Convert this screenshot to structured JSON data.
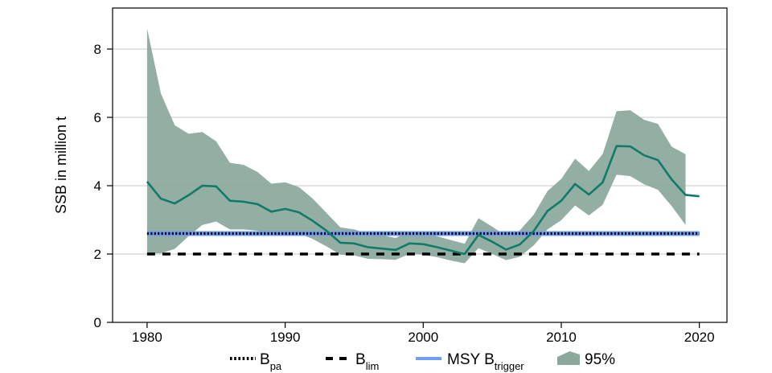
{
  "chart_data": {
    "type": "line",
    "ylabel": "SSB in million t",
    "xlabel": "",
    "xlim": [
      1977.5,
      2022
    ],
    "ylim": [
      0,
      9.2
    ],
    "x_ticks": [
      1980,
      1990,
      2000,
      2010,
      2020
    ],
    "y_ticks": [
      0,
      2,
      4,
      6,
      8
    ],
    "grid": "horizontal",
    "legend_position": "bottom",
    "colors": {
      "ssb": "#127a68",
      "ci": "#8aa89c",
      "bpa": "#000000",
      "blim": "#000000",
      "msy": "#6e9ef5"
    },
    "series": [
      {
        "key": "ssb",
        "x": [
          1980,
          1981,
          1982,
          1983,
          1984,
          1985,
          1986,
          1987,
          1988,
          1989,
          1990,
          1991,
          1992,
          1993,
          1994,
          1995,
          1996,
          1997,
          1998,
          1999,
          2000,
          2001,
          2002,
          2003,
          2004,
          2005,
          2006,
          2007,
          2008,
          2009,
          2010,
          2011,
          2012,
          2013,
          2014,
          2015,
          2016,
          2017,
          2018,
          2019,
          2020
        ],
        "y": [
          4.12,
          3.62,
          3.48,
          3.72,
          4.0,
          3.98,
          3.56,
          3.53,
          3.46,
          3.24,
          3.32,
          3.22,
          2.97,
          2.68,
          2.33,
          2.31,
          2.2,
          2.16,
          2.12,
          2.31,
          2.29,
          2.2,
          2.1,
          2.0,
          2.56,
          2.36,
          2.13,
          2.28,
          2.67,
          3.26,
          3.56,
          4.05,
          3.74,
          4.1,
          5.16,
          5.15,
          4.89,
          4.75,
          4.18,
          3.73,
          3.69
        ]
      }
    ],
    "ci_band": {
      "label": "95%",
      "x": [
        1980,
        1981,
        1982,
        1983,
        1984,
        1985,
        1986,
        1987,
        1988,
        1989,
        1990,
        1991,
        1992,
        1993,
        1994,
        1995,
        1996,
        1997,
        1998,
        1999,
        2000,
        2001,
        2002,
        2003,
        2004,
        2005,
        2006,
        2007,
        2008,
        2009,
        2010,
        2011,
        2012,
        2013,
        2014,
        2015,
        2016,
        2017,
        2018,
        2019
      ],
      "upper": [
        8.6,
        6.7,
        5.77,
        5.52,
        5.57,
        5.3,
        4.67,
        4.61,
        4.4,
        4.06,
        4.1,
        3.96,
        3.62,
        3.2,
        2.78,
        2.72,
        2.6,
        2.55,
        2.47,
        2.67,
        2.62,
        2.52,
        2.41,
        2.3,
        3.05,
        2.8,
        2.53,
        2.69,
        3.15,
        3.84,
        4.2,
        4.79,
        4.43,
        4.93,
        6.18,
        6.21,
        5.93,
        5.81,
        5.14,
        4.92
      ],
      "lower": [
        2.02,
        2.02,
        2.15,
        2.52,
        2.85,
        2.95,
        2.72,
        2.72,
        2.68,
        2.6,
        2.65,
        2.6,
        2.44,
        2.22,
        1.98,
        1.96,
        1.86,
        1.85,
        1.83,
        2.0,
        1.98,
        1.91,
        1.81,
        1.73,
        2.17,
        2.0,
        1.82,
        1.92,
        2.25,
        2.72,
        2.99,
        3.42,
        3.13,
        3.44,
        4.32,
        4.28,
        4.04,
        3.88,
        3.4,
        2.85
      ]
    },
    "reference_lines": [
      {
        "key": "msy",
        "y": 2.6,
        "style": "solid"
      },
      {
        "key": "bpa",
        "y": 2.6,
        "style": "dotted"
      },
      {
        "key": "blim",
        "y": 2.0,
        "style": "dashed"
      }
    ],
    "legend": [
      {
        "key": "bpa",
        "main": "B",
        "sub": "pa"
      },
      {
        "key": "blim",
        "main": "B",
        "sub": "lim"
      },
      {
        "key": "msy",
        "main": "MSY B",
        "sub": "trigger"
      },
      {
        "key": "ci",
        "main": "95%",
        "sub": ""
      }
    ]
  }
}
